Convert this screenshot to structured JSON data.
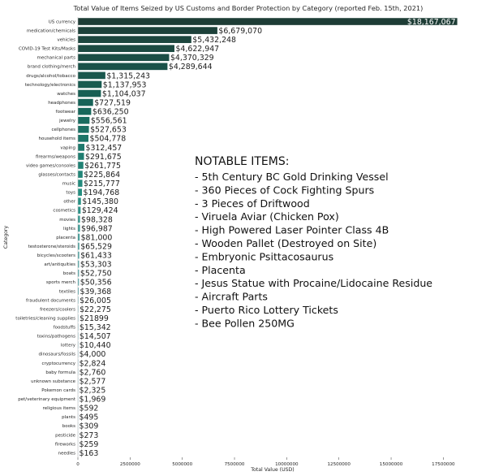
{
  "chart_data": {
    "type": "bar",
    "orientation": "horizontal",
    "title": "Total Value of Items Seized by US Customs and Border Protection by Category (reported Feb. 15th, 2021)",
    "xlabel": "Total Value (USD)",
    "ylabel": "Category",
    "xlim": [
      0,
      19000000
    ],
    "xticks": [
      0,
      2500000,
      5000000,
      7500000,
      10000000,
      12500000,
      15000000,
      17500000
    ],
    "grid": false,
    "categories": [
      "US currency",
      "medication/chemicals",
      "vehicles",
      "COVID-19 Test Kits/Masks",
      "mechanical parts",
      "brand clothing/merch",
      "drugs/alcohol/tobacco",
      "technology/electronics",
      "watches",
      "headphones",
      "footwear",
      "jewelry",
      "cellphones",
      "household items",
      "vaping",
      "firearms/weapons",
      "video games/consoles",
      "glasses/contacts",
      "music",
      "toys",
      "other",
      "cosmetics",
      "movies",
      "lights",
      "placenta",
      "testosterone/steroids",
      "bicycles/scooters",
      "art/antiquities",
      "boats",
      "sports merch",
      "textiles",
      "fraudulent documents",
      "freezers/coolers",
      "toiletries/cleaning supplies",
      "foodstuffs",
      "toxins/pathogens",
      "lottery",
      "dinosaurs/fossils",
      "cryptocurrency",
      "baby formula",
      "unknown substance",
      "Pokemon cards",
      "pet/veterinary equipment",
      "religious items",
      "plants",
      "books",
      "pesticide",
      "fireworks",
      "needles"
    ],
    "values": [
      18167067,
      6679070,
      5432248,
      4622947,
      4370329,
      4289644,
      1315243,
      1137953,
      1104037,
      727519,
      636250,
      556561,
      527653,
      504778,
      312457,
      291675,
      261775,
      225864,
      215777,
      194768,
      145380,
      129424,
      98328,
      96987,
      81000,
      65529,
      61433,
      53303,
      52750,
      50356,
      39368,
      26005,
      22275,
      21899,
      15342,
      14507,
      10440,
      4000,
      2824,
      2760,
      2577,
      2325,
      1969,
      592,
      495,
      309,
      273,
      259,
      163
    ],
    "value_labels": [
      "$18,167,067",
      "$6,679,070",
      "$5,432,248",
      "$4,622,947",
      "$4,370,329",
      "$4,289,644",
      "$1,315,243",
      "$1,137,953",
      "$1,104,037",
      "$727,519",
      "$636,250",
      "$556,561",
      "$527,653",
      "$504,778",
      "$312,457",
      "$291,675",
      "$261,775",
      "$225,864",
      "$215,777",
      "$194,768",
      "$145,380",
      "$129,424",
      "$98,328",
      "$96,987",
      "$81,000",
      "$65,529",
      "$61,433",
      "$53,303",
      "$52,750",
      "$50,356",
      "$39,368",
      "$26,005",
      "$22,275",
      "$21899",
      "$15,342",
      "$14,507",
      "$10,440",
      "$4,000",
      "$2,824",
      "$2,760",
      "$2,577",
      "$2,325",
      "$1,969",
      "$592",
      "$495",
      "$309",
      "$273",
      "$259",
      "$163"
    ],
    "colors": {
      "palette_gradient": [
        "#1e3d36",
        "#17665a",
        "#258f81",
        "#4ea3a6",
        "#94c3d4",
        "#e0ecf3"
      ],
      "first_value_label": "#ffffff",
      "other_value_labels": "#1c1c1c"
    }
  },
  "notable": {
    "heading": "NOTABLE ITEMS:",
    "items": [
      "- 5th Century BC Gold Drinking Vessel",
      "- 360 Pieces of Cock Fighting Spurs",
      "- 3 Pieces of Driftwood",
      "- Viruela Aviar (Chicken Pox)",
      "- High Powered Laser Pointer Class 4B",
      "- Wooden Pallet (Destroyed on Site)",
      "- Embryonic Psittacosaurus",
      "- Placenta",
      "- Jesus Statue with Procaine/Lidocaine Residue",
      "- Aircraft Parts",
      "- Puerto Rico Lottery Tickets",
      "- Bee Pollen  250MG"
    ]
  }
}
